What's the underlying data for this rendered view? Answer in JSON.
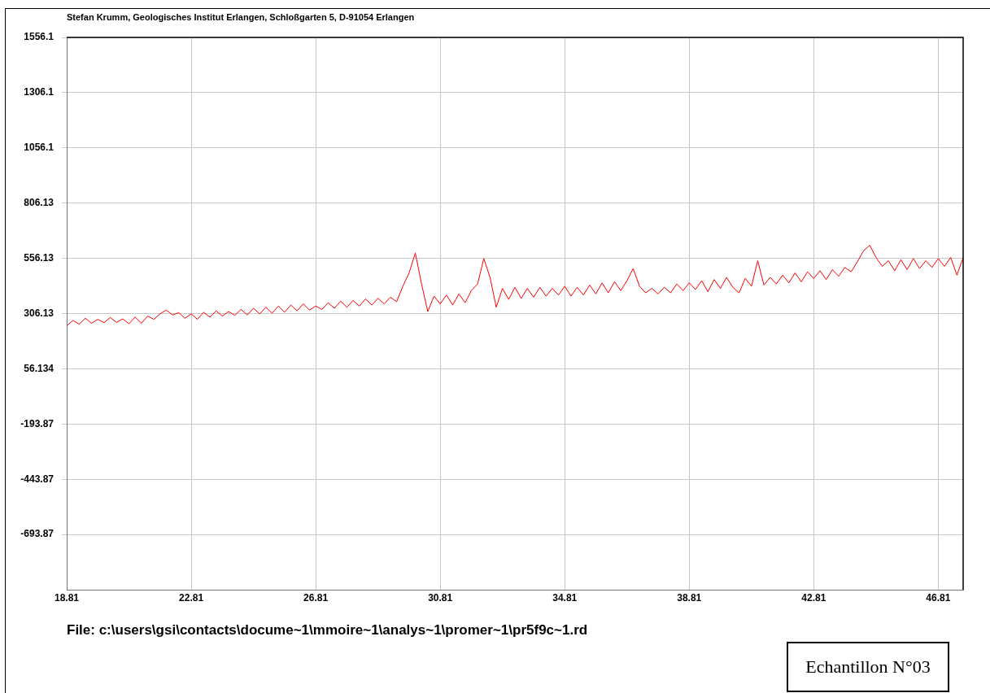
{
  "chart_data": {
    "type": "line",
    "title": "Stefan Krumm, Geologisches Institut Erlangen, Schloßgarten 5, D-91054 Erlangen",
    "annotations": [
      "File: c:\\users\\gsi\\contacts\\docume~1\\mmoire~1\\analys~1\\promer~1\\pr5f9c~1.rd",
      "Echantillon N°03"
    ],
    "xlim": [
      18.81,
      47.61
    ],
    "xticks": [
      18.81,
      22.81,
      26.81,
      30.81,
      34.81,
      38.81,
      42.81,
      46.81
    ],
    "ylim": [
      -943.87,
      1556.1
    ],
    "yticks": [
      -693.87,
      -443.87,
      -193.87,
      56.134,
      306.13,
      556.13,
      806.13,
      1056.1,
      1306.1,
      1556.1
    ],
    "grid": true,
    "legend": false,
    "marker": "none",
    "line_style": "solid",
    "series": [
      {
        "color": "#ff0000",
        "x": [
          18.81,
          19.01,
          19.21,
          19.41,
          19.61,
          19.81,
          20.01,
          20.21,
          20.41,
          20.61,
          20.81,
          21.01,
          21.21,
          21.41,
          21.61,
          21.81,
          22.01,
          22.21,
          22.41,
          22.61,
          22.81,
          23.01,
          23.21,
          23.41,
          23.61,
          23.81,
          24.01,
          24.21,
          24.41,
          24.61,
          24.81,
          25.01,
          25.21,
          25.41,
          25.61,
          25.81,
          26.01,
          26.21,
          26.41,
          26.61,
          26.81,
          27.01,
          27.21,
          27.41,
          27.61,
          27.81,
          28.01,
          28.21,
          28.41,
          28.61,
          28.81,
          29.01,
          29.21,
          29.41,
          29.61,
          29.81,
          30.01,
          30.21,
          30.41,
          30.61,
          30.81,
          31.01,
          31.21,
          31.41,
          31.61,
          31.81,
          32.01,
          32.21,
          32.41,
          32.61,
          32.81,
          33.01,
          33.21,
          33.41,
          33.61,
          33.81,
          34.01,
          34.21,
          34.41,
          34.61,
          34.81,
          35.01,
          35.21,
          35.41,
          35.61,
          35.81,
          36.01,
          36.21,
          36.41,
          36.61,
          36.81,
          37.01,
          37.21,
          37.41,
          37.61,
          37.81,
          38.01,
          38.21,
          38.41,
          38.61,
          38.81,
          39.01,
          39.21,
          39.41,
          39.61,
          39.81,
          40.01,
          40.21,
          40.41,
          40.61,
          40.81,
          41.01,
          41.21,
          41.41,
          41.61,
          41.81,
          42.01,
          42.21,
          42.41,
          42.61,
          42.81,
          43.01,
          43.21,
          43.41,
          43.61,
          43.81,
          44.01,
          44.21,
          44.41,
          44.61,
          44.81,
          45.01,
          45.21,
          45.41,
          45.61,
          45.81,
          46.01,
          46.21,
          46.41,
          46.61,
          46.81,
          47.01,
          47.21,
          47.41,
          47.61
        ],
        "values": [
          250,
          275,
          258,
          285,
          262,
          280,
          265,
          288,
          266,
          282,
          260,
          290,
          262,
          295,
          280,
          305,
          322,
          300,
          310,
          285,
          305,
          280,
          312,
          290,
          318,
          295,
          315,
          298,
          325,
          300,
          330,
          305,
          335,
          308,
          340,
          312,
          345,
          318,
          350,
          322,
          340,
          325,
          355,
          330,
          362,
          335,
          365,
          340,
          372,
          345,
          375,
          350,
          380,
          360,
          430,
          490,
          580,
          440,
          315,
          385,
          350,
          390,
          345,
          395,
          355,
          410,
          440,
          555,
          470,
          335,
          420,
          370,
          425,
          375,
          420,
          380,
          425,
          385,
          420,
          390,
          430,
          385,
          425,
          390,
          435,
          395,
          445,
          400,
          450,
          410,
          455,
          510,
          430,
          400,
          420,
          395,
          425,
          400,
          440,
          410,
          445,
          415,
          455,
          405,
          460,
          420,
          470,
          425,
          400,
          465,
          430,
          545,
          435,
          470,
          440,
          480,
          445,
          490,
          450,
          495,
          465,
          500,
          460,
          505,
          475,
          515,
          495,
          540,
          590,
          615,
          560,
          520,
          545,
          500,
          550,
          505,
          555,
          510,
          545,
          515,
          555,
          520,
          560,
          480,
          560
        ]
      }
    ]
  }
}
